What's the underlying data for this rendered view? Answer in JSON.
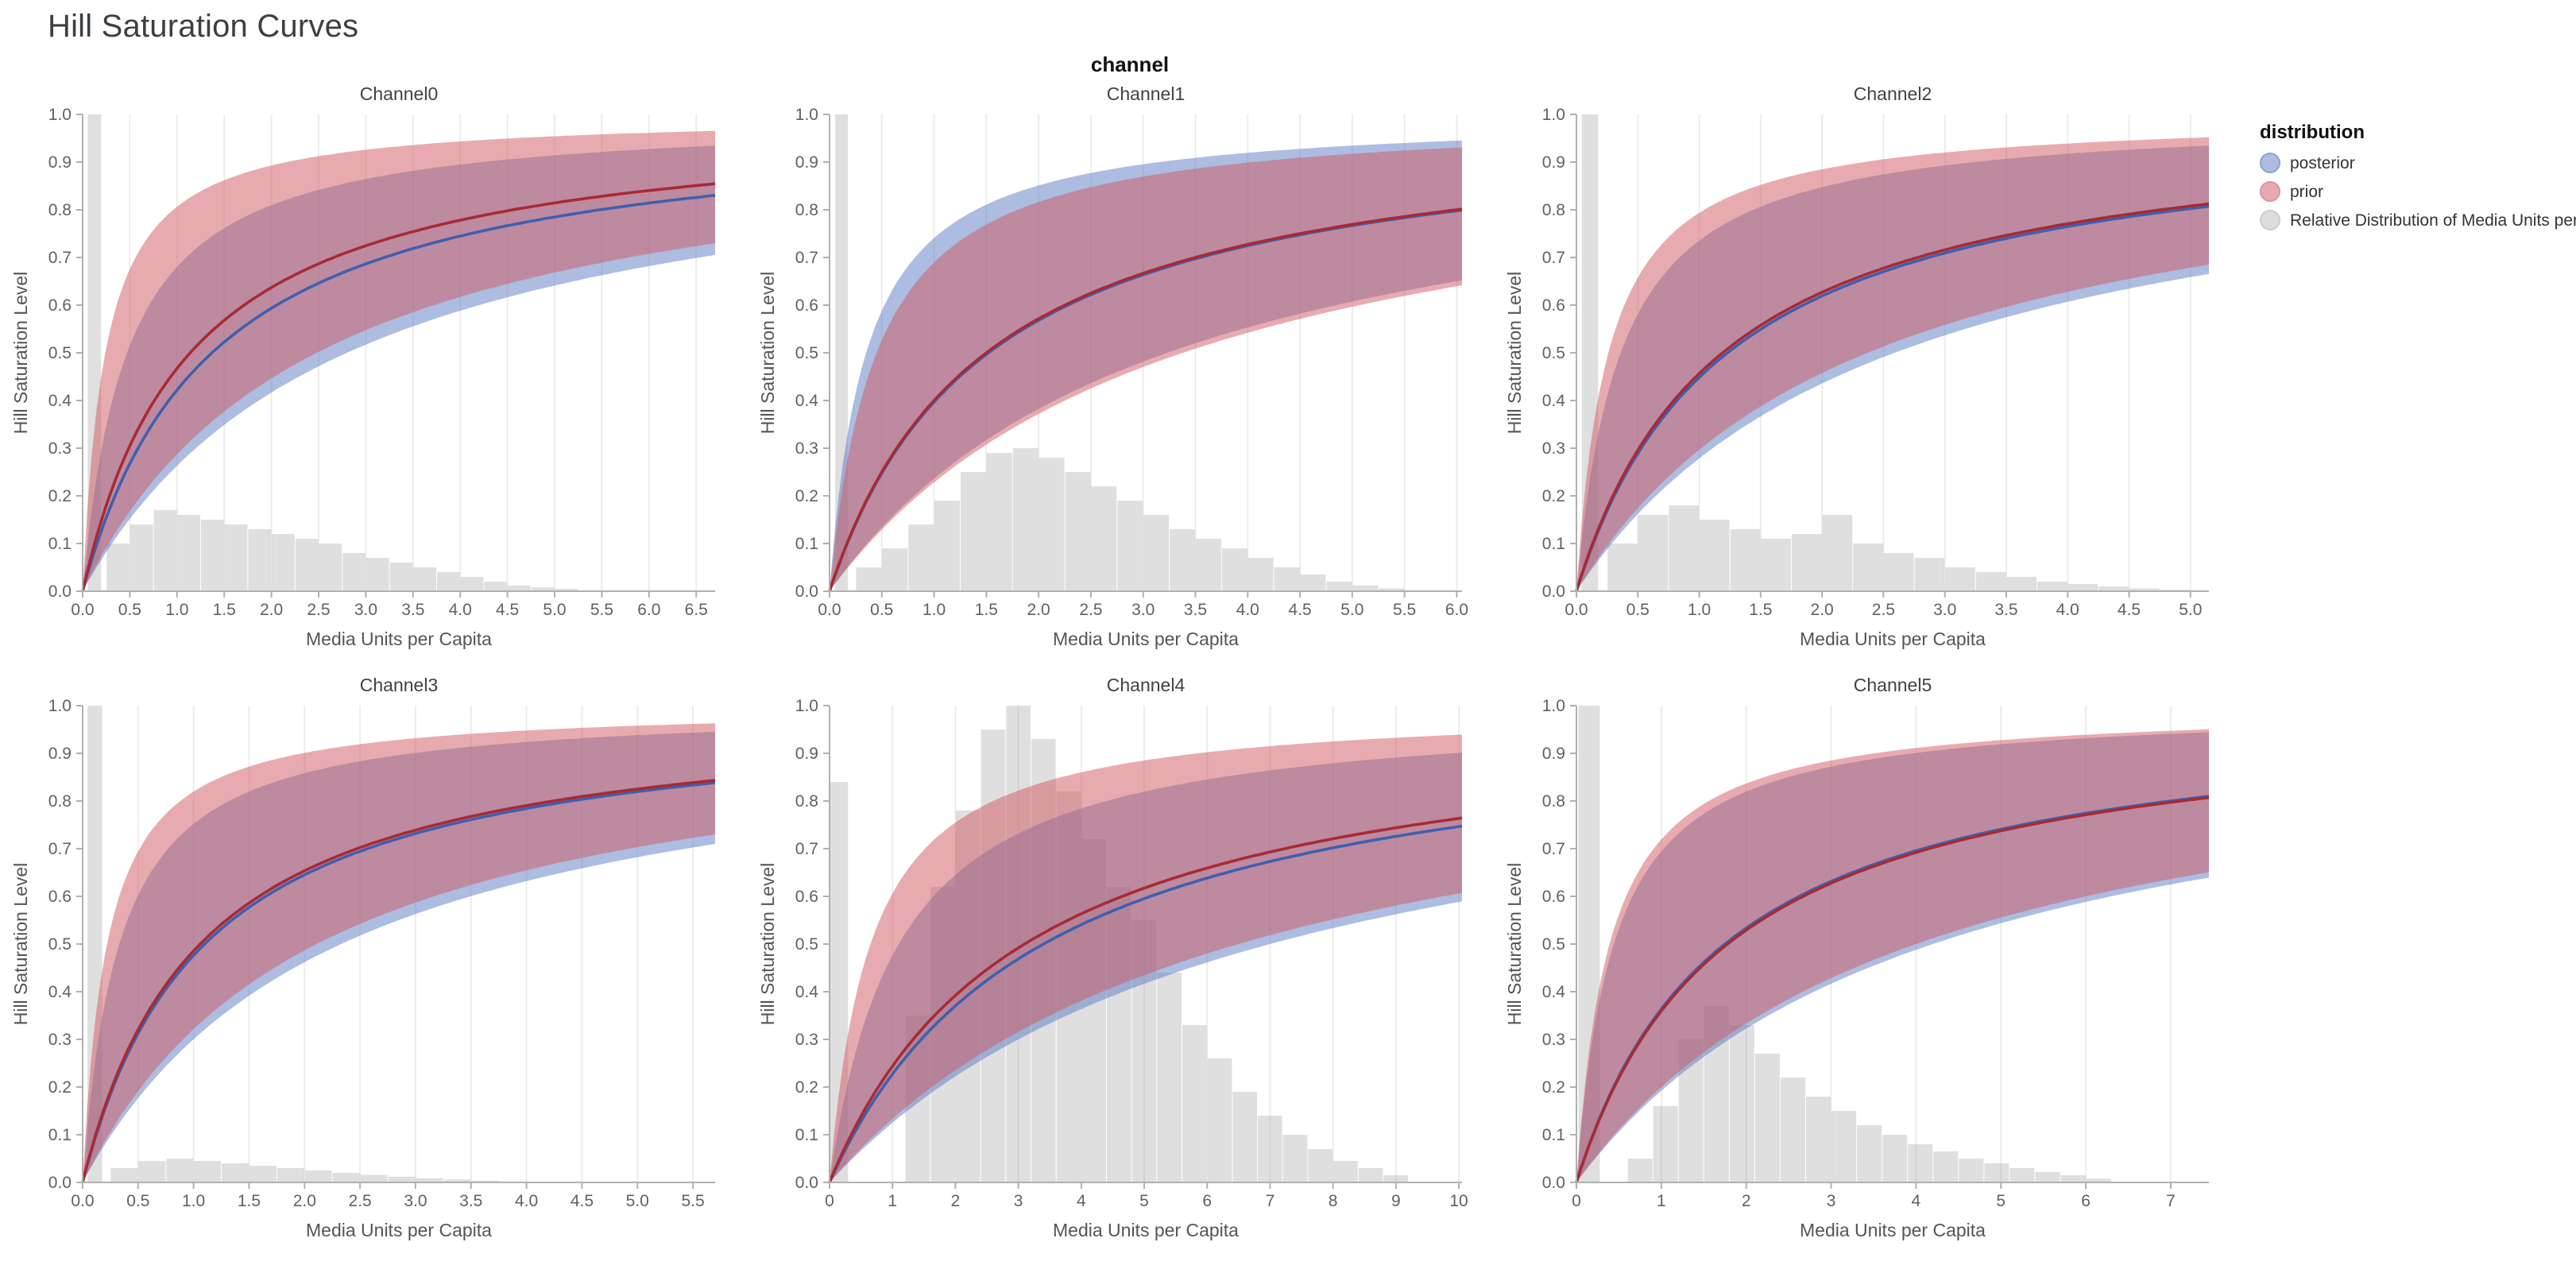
{
  "page": {
    "title": "Hill Saturation Curves"
  },
  "facet": {
    "title": "channel"
  },
  "legend": {
    "title": "distribution",
    "items": [
      {
        "label": "posterior",
        "swatch_fill": "rgba(91,121,196,0.5)",
        "swatch_stroke": "#8aa3d4"
      },
      {
        "label": "prior",
        "swatch_fill": "rgba(207,88,96,0.5)",
        "swatch_stroke": "#dd9499"
      },
      {
        "label": "Relative Distribution of Media Units per Capita",
        "swatch_fill": "rgba(180,180,180,0.45)",
        "swatch_stroke": "#cccccc"
      }
    ]
  },
  "style": {
    "posterior_line": "#3f5fae",
    "posterior_band": "rgba(91,121,196,0.5)",
    "prior_line": "#a82a33",
    "prior_band": "rgba(207,88,96,0.5)",
    "histogram_fill": "rgba(150,150,150,0.3)",
    "axis_color": "#b0b0b0",
    "grid_color": "#ececec"
  },
  "chart_data": [
    {
      "type": "line",
      "title": "Channel0",
      "xlabel": "Media Units per Capita",
      "ylabel": "Hill Saturation Level",
      "xlim": [
        0,
        6.7
      ],
      "ylim": [
        0,
        1
      ],
      "ytick_step": 0.1,
      "xticks": [
        0,
        0.5,
        1,
        1.5,
        2,
        2.5,
        3,
        3.5,
        4,
        4.5,
        5,
        5.5,
        6,
        6.5
      ],
      "xtick_labels": [
        "0.0",
        "0.5",
        "1.0",
        "1.5",
        "2.0",
        "2.5",
        "3.0",
        "3.5",
        "4.0",
        "4.5",
        "5.0",
        "5.5",
        "6.0",
        "6.5"
      ],
      "curve_model": "hill: y = x / (x + k)",
      "posterior": {
        "k_median": 1.37,
        "k_upper": 0.47,
        "k_lower": 2.8
      },
      "prior": {
        "k_median": 1.14,
        "k_upper": 0.24,
        "k_lower": 2.48
      },
      "histogram": {
        "name": "Relative Distribution of Media Units per Capita",
        "bins": [
          [
            0.05,
            0.2,
            1.0
          ],
          [
            0.25,
            0.5,
            0.1
          ],
          [
            0.5,
            0.75,
            0.14
          ],
          [
            0.75,
            1,
            0.17
          ],
          [
            1,
            1.25,
            0.16
          ],
          [
            1.25,
            1.5,
            0.15
          ],
          [
            1.5,
            1.75,
            0.14
          ],
          [
            1.75,
            2,
            0.13
          ],
          [
            2,
            2.25,
            0.12
          ],
          [
            2.25,
            2.5,
            0.11
          ],
          [
            2.5,
            2.75,
            0.1
          ],
          [
            2.75,
            3,
            0.08
          ],
          [
            3,
            3.25,
            0.07
          ],
          [
            3.25,
            3.5,
            0.06
          ],
          [
            3.5,
            3.75,
            0.05
          ],
          [
            3.75,
            4,
            0.04
          ],
          [
            4,
            4.25,
            0.03
          ],
          [
            4.25,
            4.5,
            0.02
          ],
          [
            4.5,
            4.75,
            0.012
          ],
          [
            4.75,
            5,
            0.008
          ],
          [
            5,
            5.25,
            0.005
          ]
        ]
      }
    },
    {
      "type": "line",
      "title": "Channel1",
      "xlabel": "Media Units per Capita",
      "ylabel": "Hill Saturation Level",
      "xlim": [
        0,
        6.05
      ],
      "ylim": [
        0,
        1
      ],
      "ytick_step": 0.1,
      "xticks": [
        0,
        0.5,
        1,
        1.5,
        2,
        2.5,
        3,
        3.5,
        4,
        4.5,
        5,
        5.5,
        6
      ],
      "xtick_labels": [
        "0.0",
        "0.5",
        "1.0",
        "1.5",
        "2.0",
        "2.5",
        "3.0",
        "3.5",
        "4.0",
        "4.5",
        "5.0",
        "5.5",
        "6.0"
      ],
      "curve_model": "hill: y = x / (x + k)",
      "posterior": {
        "k_median": 1.52,
        "k_upper": 0.35,
        "k_lower": 3.23
      },
      "prior": {
        "k_median": 1.5,
        "k_upper": 0.45,
        "k_lower": 3.38
      },
      "histogram": {
        "name": "Relative Distribution of Media Units per Capita",
        "bins": [
          [
            0.05,
            0.18,
            1.0
          ],
          [
            0.25,
            0.5,
            0.05
          ],
          [
            0.5,
            0.75,
            0.09
          ],
          [
            0.75,
            1,
            0.14
          ],
          [
            1,
            1.25,
            0.19
          ],
          [
            1.25,
            1.5,
            0.25
          ],
          [
            1.5,
            1.75,
            0.29
          ],
          [
            1.75,
            2,
            0.3
          ],
          [
            2,
            2.25,
            0.28
          ],
          [
            2.25,
            2.5,
            0.25
          ],
          [
            2.5,
            2.75,
            0.22
          ],
          [
            2.75,
            3,
            0.19
          ],
          [
            3,
            3.25,
            0.16
          ],
          [
            3.25,
            3.5,
            0.13
          ],
          [
            3.5,
            3.75,
            0.11
          ],
          [
            3.75,
            4,
            0.09
          ],
          [
            4,
            4.25,
            0.07
          ],
          [
            4.25,
            4.5,
            0.05
          ],
          [
            4.5,
            4.75,
            0.035
          ],
          [
            4.75,
            5,
            0.02
          ],
          [
            5,
            5.25,
            0.012
          ],
          [
            5.25,
            5.5,
            0.006
          ]
        ]
      }
    },
    {
      "type": "line",
      "title": "Channel2",
      "xlabel": "Media Units per Capita",
      "ylabel": "Hill Saturation Level",
      "xlim": [
        0,
        5.15
      ],
      "ylim": [
        0,
        1
      ],
      "ytick_step": 0.1,
      "xticks": [
        0,
        0.5,
        1,
        1.5,
        2,
        2.5,
        3,
        3.5,
        4,
        4.5,
        5
      ],
      "xtick_labels": [
        "0.0",
        "0.5",
        "1.0",
        "1.5",
        "2.0",
        "2.5",
        "3.0",
        "3.5",
        "4.0",
        "4.5",
        "5.0"
      ],
      "curve_model": "hill: y = x / (x + k)",
      "posterior": {
        "k_median": 1.23,
        "k_upper": 0.36,
        "k_lower": 2.59
      },
      "prior": {
        "k_median": 1.19,
        "k_upper": 0.26,
        "k_lower": 2.37
      },
      "histogram": {
        "name": "Relative Distribution of Media Units per Capita",
        "bins": [
          [
            0.04,
            0.18,
            1.0
          ],
          [
            0.25,
            0.5,
            0.1
          ],
          [
            0.5,
            0.75,
            0.16
          ],
          [
            0.75,
            1,
            0.18
          ],
          [
            1,
            1.25,
            0.15
          ],
          [
            1.25,
            1.5,
            0.13
          ],
          [
            1.5,
            1.75,
            0.11
          ],
          [
            1.75,
            2,
            0.12
          ],
          [
            2,
            2.25,
            0.16
          ],
          [
            2.25,
            2.5,
            0.1
          ],
          [
            2.5,
            2.75,
            0.08
          ],
          [
            2.75,
            3,
            0.07
          ],
          [
            3,
            3.25,
            0.05
          ],
          [
            3.25,
            3.5,
            0.04
          ],
          [
            3.5,
            3.75,
            0.03
          ],
          [
            3.75,
            4,
            0.02
          ],
          [
            4,
            4.25,
            0.015
          ],
          [
            4.25,
            4.5,
            0.01
          ],
          [
            4.5,
            4.75,
            0.006
          ],
          [
            4.75,
            5,
            0.003
          ]
        ]
      }
    },
    {
      "type": "line",
      "title": "Channel3",
      "xlabel": "Media Units per Capita",
      "ylabel": "Hill Saturation Level",
      "xlim": [
        0,
        5.7
      ],
      "ylim": [
        0,
        1
      ],
      "ytick_step": 0.1,
      "xticks": [
        0,
        0.5,
        1,
        1.5,
        2,
        2.5,
        3,
        3.5,
        4,
        4.5,
        5,
        5.5
      ],
      "xtick_labels": [
        "0.0",
        "0.5",
        "1.0",
        "1.5",
        "2.0",
        "2.5",
        "3.0",
        "3.5",
        "4.0",
        "4.5",
        "5.0",
        "5.5"
      ],
      "curve_model": "hill: y = x / (x + k)",
      "posterior": {
        "k_median": 1.1,
        "k_upper": 0.33,
        "k_lower": 2.33
      },
      "prior": {
        "k_median": 1.06,
        "k_upper": 0.22,
        "k_lower": 2.11
      },
      "histogram": {
        "name": "Relative Distribution of Media Units per Capita",
        "bins": [
          [
            0.04,
            0.18,
            1.0
          ],
          [
            0.25,
            0.5,
            0.03
          ],
          [
            0.5,
            0.75,
            0.045
          ],
          [
            0.75,
            1,
            0.05
          ],
          [
            1,
            1.25,
            0.045
          ],
          [
            1.25,
            1.5,
            0.04
          ],
          [
            1.5,
            1.75,
            0.035
          ],
          [
            1.75,
            2,
            0.03
          ],
          [
            2,
            2.25,
            0.025
          ],
          [
            2.25,
            2.5,
            0.02
          ],
          [
            2.5,
            2.75,
            0.016
          ],
          [
            2.75,
            3,
            0.012
          ],
          [
            3,
            3.25,
            0.009
          ],
          [
            3.25,
            3.5,
            0.006
          ],
          [
            3.5,
            3.75,
            0.004
          ],
          [
            3.75,
            4,
            0.002
          ]
        ]
      }
    },
    {
      "type": "line",
      "title": "Channel4",
      "xlabel": "Media Units per Capita",
      "ylabel": "Hill Saturation Level",
      "xlim": [
        0,
        10.05
      ],
      "ylim": [
        0,
        1
      ],
      "ytick_step": 0.1,
      "xticks": [
        0,
        1,
        2,
        3,
        4,
        5,
        6,
        7,
        8,
        9,
        10
      ],
      "xtick_labels": [
        "0",
        "1",
        "2",
        "3",
        "4",
        "5",
        "6",
        "7",
        "8",
        "9",
        "10"
      ],
      "curve_model": "hill: y = x / (x + k)",
      "posterior": {
        "k_median": 3.4,
        "k_upper": 1.1,
        "k_lower": 7.0
      },
      "prior": {
        "k_median": 3.1,
        "k_upper": 0.65,
        "k_lower": 6.5
      },
      "histogram": {
        "name": "Relative Distribution of Media Units per Capita",
        "bins": [
          [
            0,
            0.3,
            0.84
          ],
          [
            1.2,
            1.6,
            0.35
          ],
          [
            1.6,
            2,
            0.62
          ],
          [
            2,
            2.4,
            0.78
          ],
          [
            2.4,
            2.8,
            0.95
          ],
          [
            2.8,
            3.2,
            1.0
          ],
          [
            3.2,
            3.6,
            0.93
          ],
          [
            3.6,
            4,
            0.82
          ],
          [
            4,
            4.4,
            0.72
          ],
          [
            4.4,
            4.8,
            0.62
          ],
          [
            4.8,
            5.2,
            0.55
          ],
          [
            5.2,
            5.6,
            0.44
          ],
          [
            5.6,
            6,
            0.33
          ],
          [
            6,
            6.4,
            0.26
          ],
          [
            6.4,
            6.8,
            0.19
          ],
          [
            6.8,
            7.2,
            0.14
          ],
          [
            7.2,
            7.6,
            0.1
          ],
          [
            7.6,
            8,
            0.07
          ],
          [
            8,
            8.4,
            0.045
          ],
          [
            8.4,
            8.8,
            0.03
          ],
          [
            8.8,
            9.2,
            0.015
          ]
        ]
      }
    },
    {
      "type": "line",
      "title": "Channel5",
      "xlabel": "Media Units per Capita",
      "ylabel": "Hill Saturation Level",
      "xlim": [
        0,
        7.45
      ],
      "ylim": [
        0,
        1
      ],
      "ytick_step": 0.1,
      "xticks": [
        0,
        1,
        2,
        3,
        4,
        5,
        6,
        7
      ],
      "xtick_labels": [
        "0",
        "1",
        "2",
        "3",
        "4",
        "5",
        "6",
        "7"
      ],
      "curve_model": "hill: y = x / (x + k)",
      "posterior": {
        "k_median": 1.75,
        "k_upper": 0.44,
        "k_lower": 4.2
      },
      "prior": {
        "k_median": 1.78,
        "k_upper": 0.39,
        "k_lower": 4.0
      },
      "histogram": {
        "name": "Relative Distribution of Media Units per Capita",
        "bins": [
          [
            0.02,
            0.28,
            1.0
          ],
          [
            0.6,
            0.9,
            0.05
          ],
          [
            0.9,
            1.2,
            0.16
          ],
          [
            1.2,
            1.5,
            0.3
          ],
          [
            1.5,
            1.8,
            0.37
          ],
          [
            1.8,
            2.1,
            0.33
          ],
          [
            2.1,
            2.4,
            0.27
          ],
          [
            2.4,
            2.7,
            0.22
          ],
          [
            2.7,
            3,
            0.18
          ],
          [
            3,
            3.3,
            0.15
          ],
          [
            3.3,
            3.6,
            0.12
          ],
          [
            3.6,
            3.9,
            0.1
          ],
          [
            3.9,
            4.2,
            0.08
          ],
          [
            4.2,
            4.5,
            0.065
          ],
          [
            4.5,
            4.8,
            0.05
          ],
          [
            4.8,
            5.1,
            0.04
          ],
          [
            5.1,
            5.4,
            0.03
          ],
          [
            5.4,
            5.7,
            0.022
          ],
          [
            5.7,
            6,
            0.015
          ],
          [
            6,
            6.3,
            0.008
          ]
        ]
      }
    }
  ]
}
